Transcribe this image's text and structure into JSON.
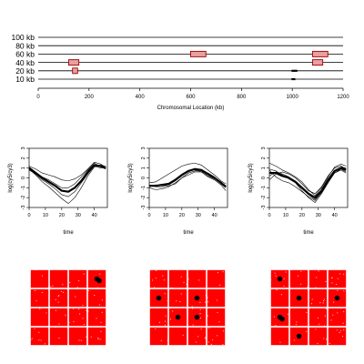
{
  "chart_data": [
    {
      "type": "segments",
      "xlabel": "Chromosomal Location (kb)",
      "x_ticks": [
        0,
        200,
        400,
        600,
        800,
        1000,
        1200
      ],
      "xlim": [
        0,
        1200
      ],
      "y_tick_labels": [
        "100 kb",
        "80 kb",
        "60 kb",
        "40 kb",
        "20 kb",
        "10 kb"
      ],
      "colors": {
        "box_fill": "#e8a0a0",
        "box_stroke": "#a00000",
        "line": "#000000"
      },
      "boxes": [
        {
          "level": "40 kb",
          "start": 120,
          "end": 160
        },
        {
          "level": "20 kb",
          "start": 135,
          "end": 155
        },
        {
          "level": "60 kb",
          "start": 600,
          "end": 660
        },
        {
          "level": "60 kb",
          "start": 1080,
          "end": 1140
        },
        {
          "level": "40 kb",
          "start": 1080,
          "end": 1120
        }
      ],
      "marks": [
        {
          "level": "20 kb",
          "start": 997,
          "end": 1020
        },
        {
          "level": "10 kb",
          "start": 997,
          "end": 1012
        }
      ]
    },
    {
      "type": "line",
      "xlabel": "time",
      "ylabel": "log(cy5/cy3)",
      "xlim": [
        0,
        48
      ],
      "ylim": [
        -3,
        3
      ],
      "x_ticks": [
        0,
        10,
        20,
        30,
        40
      ],
      "y_ticks": [
        -3,
        -2,
        -1,
        0,
        1,
        2,
        3
      ],
      "x": [
        0,
        4,
        8,
        12,
        16,
        20,
        24,
        28,
        32,
        36,
        40,
        44,
        47
      ],
      "mean": [
        1.0,
        0.5,
        0.0,
        -0.4,
        -0.8,
        -1.3,
        -1.4,
        -1.0,
        -0.3,
        0.6,
        1.3,
        1.2,
        1.0
      ],
      "series": [
        [
          1.2,
          0.9,
          0.5,
          0.3,
          0.1,
          -0.2,
          -0.3,
          -0.1,
          0.3,
          0.9,
          1.6,
          1.4,
          1.0
        ],
        [
          0.9,
          0.3,
          -0.4,
          -0.9,
          -1.5,
          -2.1,
          -2.6,
          -2.0,
          -1.0,
          0.2,
          1.1,
          1.3,
          1.2
        ],
        [
          1.1,
          0.6,
          0.1,
          -0.2,
          -0.6,
          -1.0,
          -1.0,
          -0.6,
          0.1,
          0.8,
          1.5,
          1.1,
          0.9
        ],
        [
          0.8,
          0.4,
          -0.2,
          -0.6,
          -1.1,
          -1.7,
          -1.9,
          -1.4,
          -0.5,
          0.4,
          1.2,
          1.0,
          1.1
        ]
      ]
    },
    {
      "type": "line",
      "xlabel": "time",
      "ylabel": "log(cy5/cy3)",
      "xlim": [
        0,
        48
      ],
      "ylim": [
        -3,
        3
      ],
      "x_ticks": [
        0,
        10,
        20,
        30,
        40
      ],
      "y_ticks": [
        -3,
        -2,
        -1,
        0,
        1,
        2,
        3
      ],
      "x": [
        0,
        4,
        8,
        12,
        16,
        20,
        24,
        28,
        32,
        36,
        40,
        44,
        47
      ],
      "mean": [
        -0.8,
        -0.8,
        -0.7,
        -0.6,
        -0.2,
        0.3,
        0.7,
        0.9,
        0.8,
        0.4,
        0.0,
        -0.5,
        -0.9
      ],
      "series": [
        [
          -0.5,
          -0.4,
          0.0,
          0.4,
          0.8,
          1.2,
          1.4,
          1.5,
          1.3,
          0.8,
          0.3,
          -0.3,
          -0.6
        ],
        [
          -1.0,
          -1.2,
          -1.1,
          -0.9,
          -0.5,
          0.0,
          0.3,
          0.6,
          0.6,
          0.1,
          -0.2,
          -0.7,
          -1.3
        ],
        [
          -0.9,
          -0.7,
          -0.8,
          -0.7,
          -0.3,
          0.2,
          0.7,
          0.8,
          0.6,
          0.5,
          0.1,
          -0.6,
          -1.0
        ],
        [
          -0.7,
          -0.9,
          -0.9,
          -0.8,
          -0.6,
          0.0,
          0.5,
          0.7,
          0.7,
          0.2,
          -0.1,
          -0.4,
          -0.8
        ]
      ]
    },
    {
      "type": "line",
      "xlabel": "time",
      "ylabel": "log(cy5/cy3)",
      "xlim": [
        0,
        48
      ],
      "ylim": [
        -3,
        3
      ],
      "x_ticks": [
        0,
        10,
        20,
        30,
        40
      ],
      "y_ticks": [
        -3,
        -2,
        -1,
        0,
        1,
        2,
        3
      ],
      "x": [
        0,
        4,
        8,
        12,
        16,
        20,
        24,
        28,
        32,
        36,
        40,
        44,
        47
      ],
      "mean": [
        0.5,
        0.5,
        0.2,
        0.0,
        -0.4,
        -1.0,
        -1.6,
        -2.0,
        -1.3,
        -0.2,
        0.7,
        1.0,
        0.8
      ],
      "series": [
        [
          1.5,
          1.2,
          0.8,
          0.5,
          0.1,
          -0.4,
          -1.2,
          -1.8,
          -1.0,
          0.1,
          1.1,
          1.4,
          1.2
        ],
        [
          0.2,
          0.6,
          0.4,
          0.1,
          -0.5,
          -1.3,
          -2.0,
          -2.5,
          -1.6,
          -0.5,
          0.5,
          0.9,
          0.6
        ],
        [
          0.8,
          0.1,
          -0.3,
          -0.5,
          -0.9,
          -1.4,
          -1.9,
          -2.3,
          -1.5,
          -0.4,
          0.5,
          0.8,
          0.5
        ],
        [
          -0.2,
          0.4,
          0.6,
          0.4,
          0.0,
          -0.6,
          -1.3,
          -1.6,
          -0.9,
          0.2,
          1.0,
          1.2,
          0.9
        ],
        [
          0.9,
          0.7,
          0.3,
          -0.1,
          -0.5,
          -1.1,
          -1.7,
          -2.2,
          -1.4,
          -0.3,
          0.6,
          1.1,
          1.0
        ]
      ]
    },
    {
      "type": "heatmap",
      "grid": [
        4,
        4
      ],
      "colors": {
        "cell": "#ff0000",
        "dot": "#000000"
      },
      "highlighted": [
        {
          "row": 0,
          "col": 3
        },
        {
          "row": 0,
          "col": 3
        }
      ]
    },
    {
      "type": "heatmap",
      "grid": [
        4,
        4
      ],
      "colors": {
        "cell": "#ff0000",
        "dot": "#000000"
      },
      "highlighted": [
        {
          "row": 1,
          "col": 0
        },
        {
          "row": 1,
          "col": 2
        },
        {
          "row": 2,
          "col": 1
        },
        {
          "row": 2,
          "col": 2
        }
      ]
    },
    {
      "type": "heatmap",
      "grid": [
        4,
        4
      ],
      "colors": {
        "cell": "#ff0000",
        "dot": "#000000"
      },
      "highlighted": [
        {
          "row": 0,
          "col": 0
        },
        {
          "row": 1,
          "col": 1
        },
        {
          "row": 1,
          "col": 3
        },
        {
          "row": 2,
          "col": 0
        },
        {
          "row": 2,
          "col": 0
        },
        {
          "row": 3,
          "col": 1
        }
      ]
    }
  ]
}
